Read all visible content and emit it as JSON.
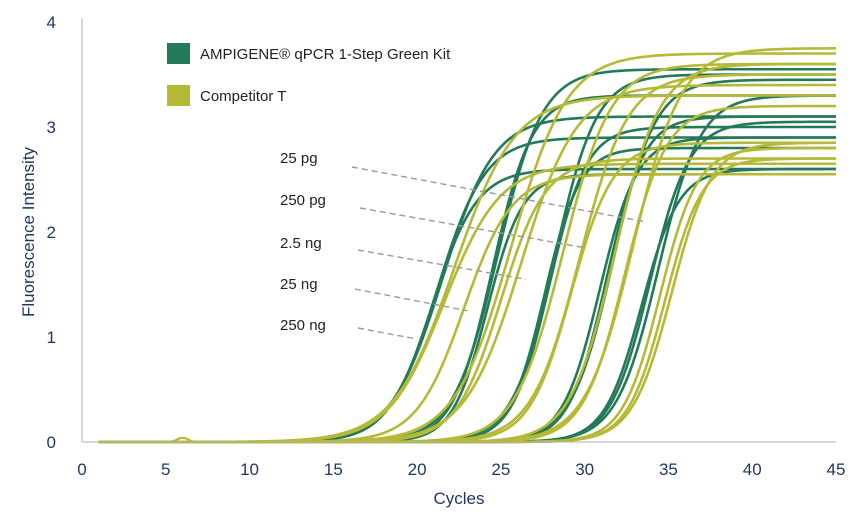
{
  "chart_data": {
    "type": "line",
    "title": "",
    "xlabel": "Cycles",
    "ylabel": "Fluorescence Intensity",
    "xlim": [
      0,
      45
    ],
    "ylim": [
      0,
      4
    ],
    "x_ticks": [
      0,
      5,
      10,
      15,
      20,
      25,
      30,
      35,
      40,
      45
    ],
    "y_ticks": [
      0,
      1,
      2,
      3,
      4
    ],
    "grid": false,
    "legend_position": "top-left",
    "legend": [
      {
        "label": "AMPIGENE® qPCR 1-Step Green Kit",
        "color": "#237a57"
      },
      {
        "label": "Competitor T",
        "color": "#b5b935"
      }
    ],
    "annotations": [
      {
        "label": "25 pg",
        "target_cycle": 33.5,
        "target_value": 2.1
      },
      {
        "label": "250 pg",
        "target_cycle": 30.0,
        "target_value": 1.85
      },
      {
        "label": "2.5 ng",
        "target_cycle": 26.5,
        "target_value": 1.55
      },
      {
        "label": "25 ng",
        "target_cycle": 23.0,
        "target_value": 1.25
      },
      {
        "label": "250 ng",
        "target_cycle": 20.0,
        "target_value": 0.98
      }
    ],
    "series": [
      {
        "group": "AMPIGENE® qPCR 1-Step Green Kit",
        "amount": "250 ng",
        "ct": 20.9,
        "plateau": 2.6,
        "slope": 0.75
      },
      {
        "group": "AMPIGENE® qPCR 1-Step Green Kit",
        "amount": "250 ng",
        "ct": 21.2,
        "plateau": 2.9,
        "slope": 0.7
      },
      {
        "group": "AMPIGENE® qPCR 1-Step Green Kit",
        "amount": "250 ng",
        "ct": 21.5,
        "plateau": 3.1,
        "slope": 0.65
      },
      {
        "group": "AMPIGENE® qPCR 1-Step Green Kit",
        "amount": "25 ng",
        "ct": 24.2,
        "plateau": 2.55,
        "slope": 0.95
      },
      {
        "group": "AMPIGENE® qPCR 1-Step Green Kit",
        "amount": "25 ng",
        "ct": 24.5,
        "plateau": 3.3,
        "slope": 0.85
      },
      {
        "group": "AMPIGENE® qPCR 1-Step Green Kit",
        "amount": "25 ng",
        "ct": 24.8,
        "plateau": 3.55,
        "slope": 0.75
      },
      {
        "group": "AMPIGENE® qPCR 1-Step Green Kit",
        "amount": "2.5 ng",
        "ct": 27.6,
        "plateau": 2.8,
        "slope": 0.95
      },
      {
        "group": "AMPIGENE® qPCR 1-Step Green Kit",
        "amount": "2.5 ng",
        "ct": 27.9,
        "plateau": 3.0,
        "slope": 0.9
      },
      {
        "group": "AMPIGENE® qPCR 1-Step Green Kit",
        "amount": "2.5 ng",
        "ct": 28.2,
        "plateau": 3.5,
        "slope": 0.8
      },
      {
        "group": "AMPIGENE® qPCR 1-Step Green Kit",
        "amount": "250 pg",
        "ct": 30.9,
        "plateau": 2.9,
        "slope": 0.9
      },
      {
        "group": "AMPIGENE® qPCR 1-Step Green Kit",
        "amount": "250 pg",
        "ct": 31.3,
        "plateau": 3.1,
        "slope": 0.9
      },
      {
        "group": "AMPIGENE® qPCR 1-Step Green Kit",
        "amount": "250 pg",
        "ct": 31.7,
        "plateau": 3.45,
        "slope": 0.8
      },
      {
        "group": "AMPIGENE® qPCR 1-Step Green Kit",
        "amount": "25 pg",
        "ct": 33.4,
        "plateau": 2.6,
        "slope": 0.9
      },
      {
        "group": "AMPIGENE® qPCR 1-Step Green Kit",
        "amount": "25 pg",
        "ct": 33.9,
        "plateau": 3.05,
        "slope": 0.85
      },
      {
        "group": "AMPIGENE® qPCR 1-Step Green Kit",
        "amount": "25 pg",
        "ct": 34.4,
        "plateau": 3.3,
        "slope": 0.8
      },
      {
        "group": "Competitor T",
        "amount": "250 ng",
        "ct": 21.6,
        "plateau": 2.65,
        "slope": 0.6
      },
      {
        "group": "Competitor T",
        "amount": "250 ng",
        "ct": 22.2,
        "plateau": 3.3,
        "slope": 0.55
      },
      {
        "group": "Competitor T",
        "amount": "250 ng",
        "ct": 22.8,
        "plateau": 2.55,
        "slope": 0.7
      },
      {
        "group": "Competitor T",
        "amount": "25 ng",
        "ct": 25.0,
        "plateau": 2.7,
        "slope": 0.75
      },
      {
        "group": "Competitor T",
        "amount": "25 ng",
        "ct": 25.6,
        "plateau": 3.7,
        "slope": 0.6
      },
      {
        "group": "Competitor T",
        "amount": "25 ng",
        "ct": 26.2,
        "plateau": 3.4,
        "slope": 0.6
      },
      {
        "group": "Competitor T",
        "amount": "2.5 ng",
        "ct": 28.7,
        "plateau": 3.6,
        "slope": 0.7
      },
      {
        "group": "Competitor T",
        "amount": "2.5 ng",
        "ct": 29.2,
        "plateau": 2.85,
        "slope": 0.8
      },
      {
        "group": "Competitor T",
        "amount": "2.5 ng",
        "ct": 29.7,
        "plateau": 3.5,
        "slope": 0.7
      },
      {
        "group": "Competitor T",
        "amount": "250 pg",
        "ct": 31.8,
        "plateau": 3.6,
        "slope": 0.75
      },
      {
        "group": "Competitor T",
        "amount": "250 pg",
        "ct": 32.4,
        "plateau": 3.2,
        "slope": 0.8
      },
      {
        "group": "Competitor T",
        "amount": "250 pg",
        "ct": 32.9,
        "plateau": 3.75,
        "slope": 0.7
      },
      {
        "group": "Competitor T",
        "amount": "25 pg",
        "ct": 34.5,
        "plateau": 2.8,
        "slope": 0.9
      },
      {
        "group": "Competitor T",
        "amount": "25 pg",
        "ct": 34.8,
        "plateau": 2.7,
        "slope": 0.9
      },
      {
        "group": "Competitor T",
        "amount": "25 pg",
        "ct": 35.2,
        "plateau": 2.85,
        "slope": 0.85
      }
    ]
  }
}
